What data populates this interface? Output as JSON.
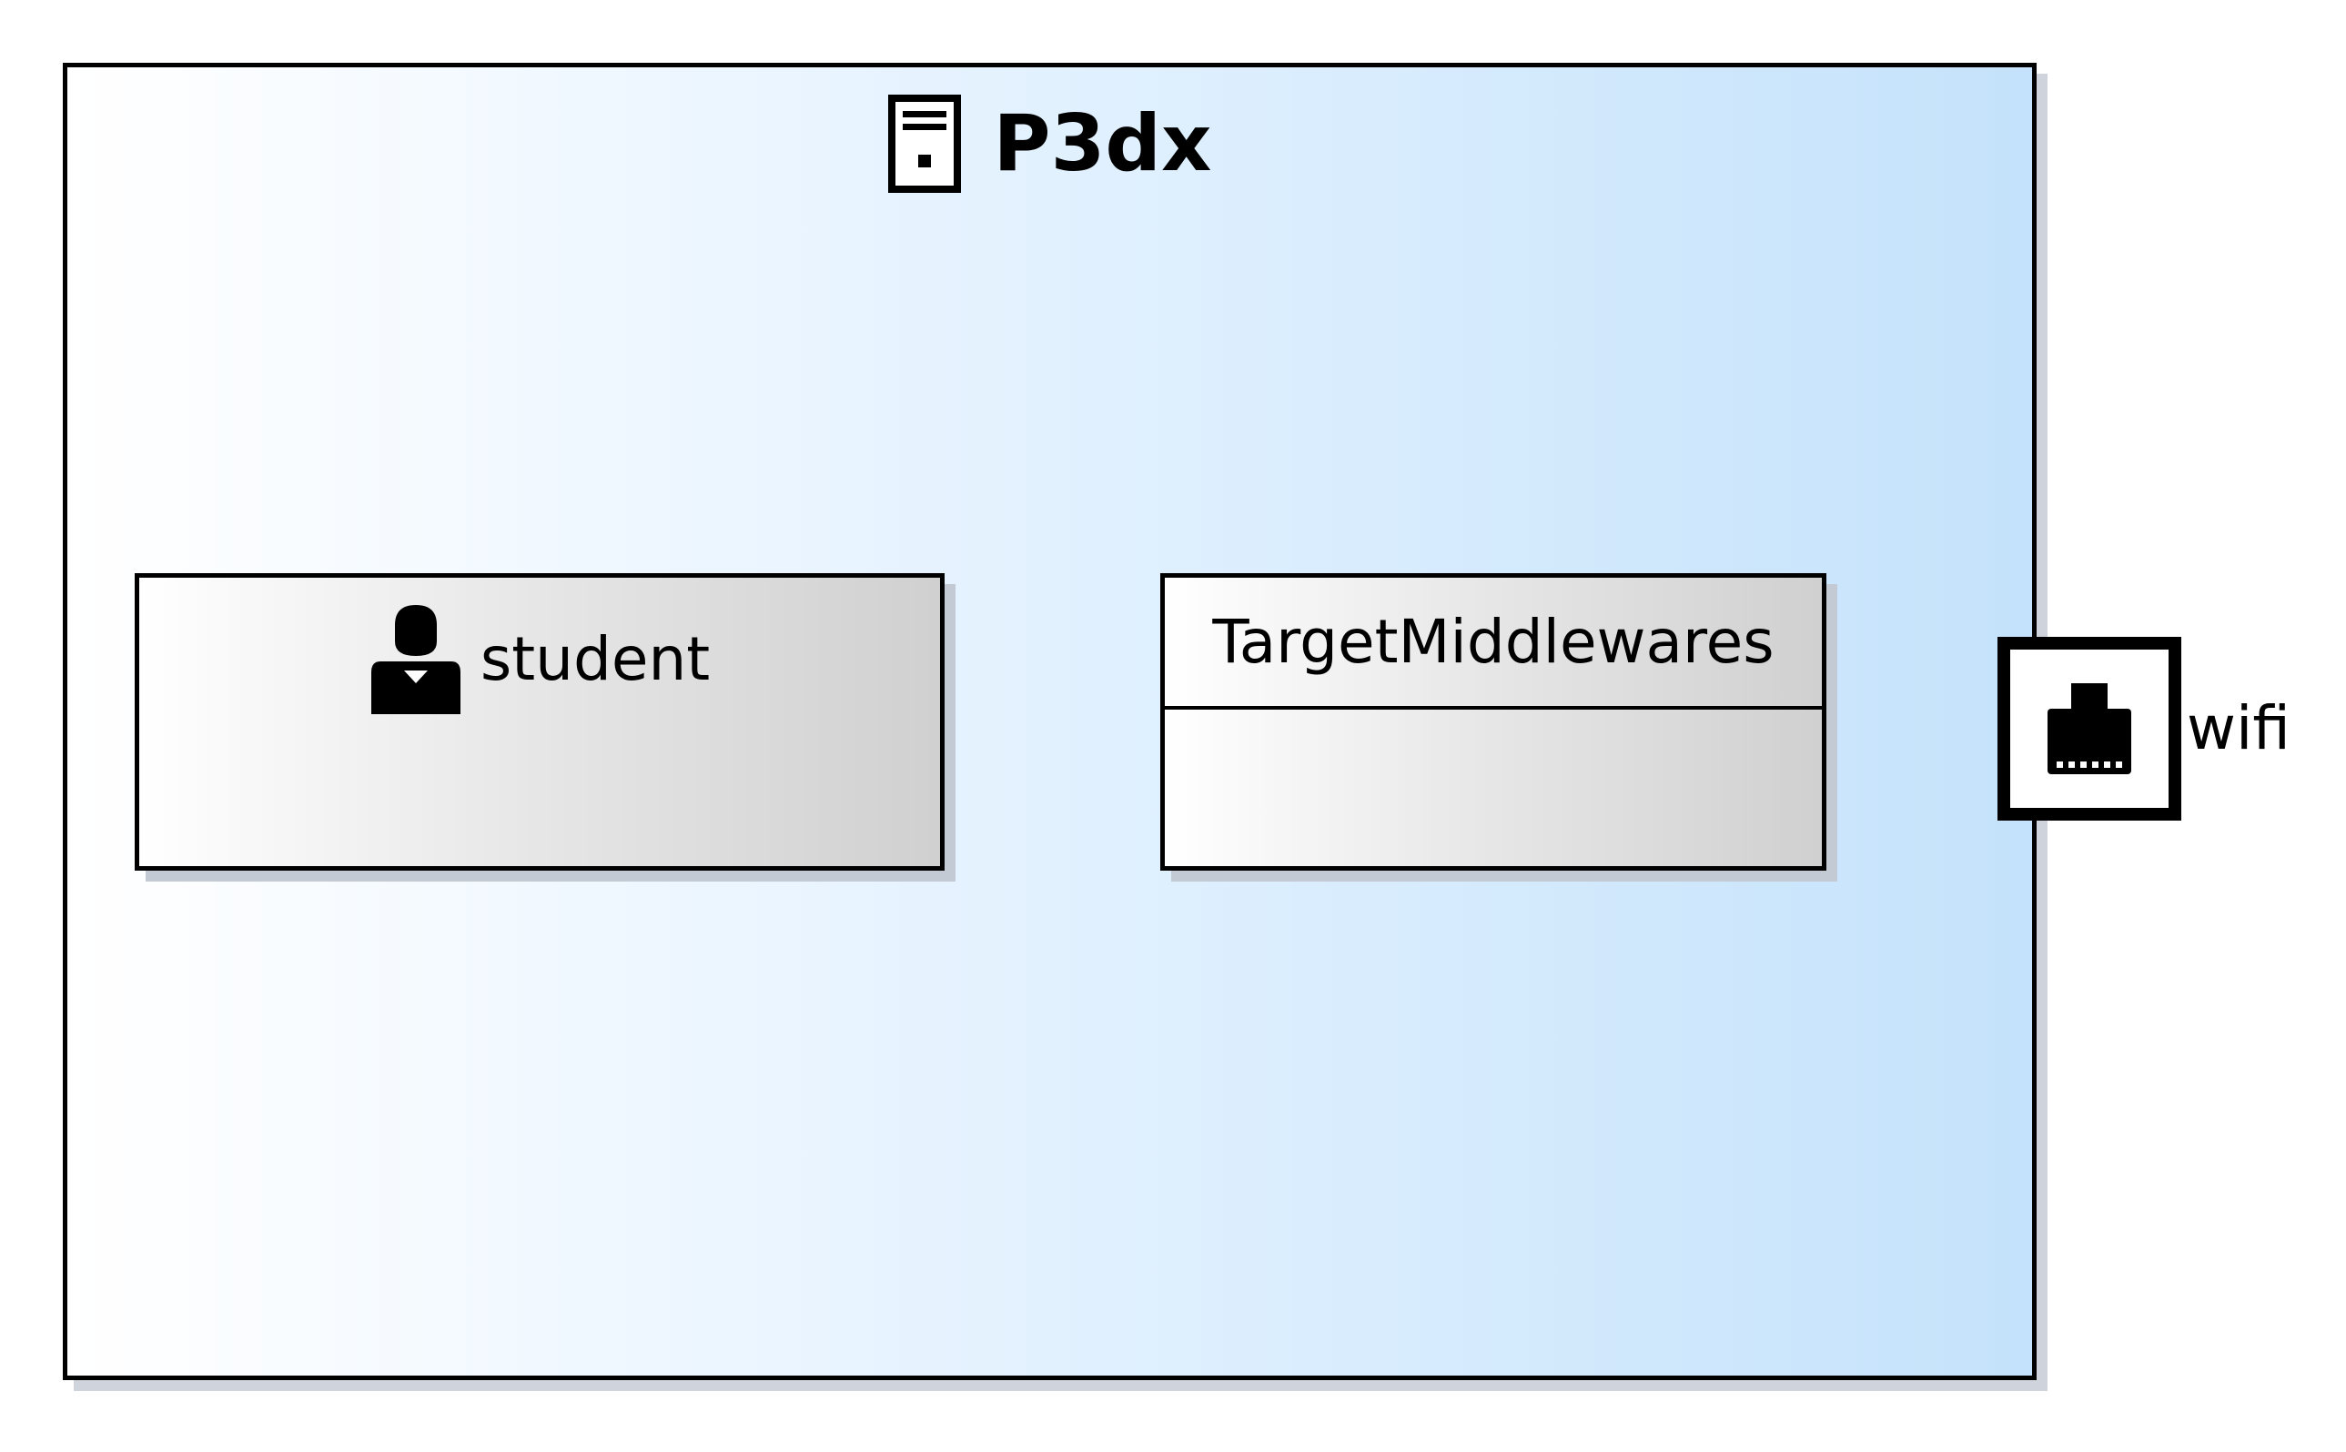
{
  "node": {
    "title": "P3dx",
    "icon": "server-icon",
    "gradient": [
      "#ffffff",
      "#e8f4ff",
      "#c4e2fb"
    ]
  },
  "artifacts": [
    {
      "label": "student",
      "icon": "person-icon"
    },
    {
      "label": "TargetMiddlewares"
    }
  ],
  "port": {
    "label": "wifi",
    "icon": "network-port-icon"
  }
}
